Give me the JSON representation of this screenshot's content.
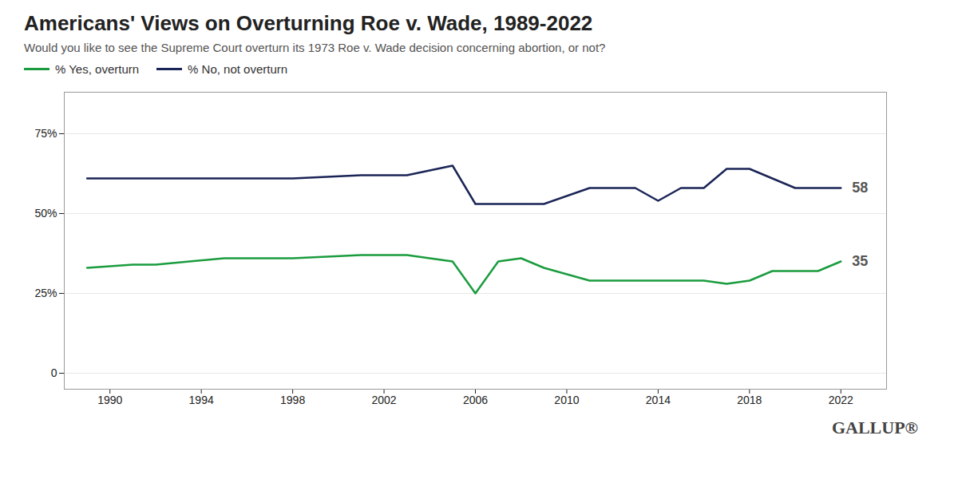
{
  "chart_data": {
    "type": "line",
    "title": "Americans' Views on Overturning Roe v. Wade, 1989-2022",
    "subtitle": "Would you like to see the Supreme Court overturn its 1973 Roe v. Wade decision concerning abortion, or not?",
    "x": [
      1989,
      1991,
      1992,
      1995,
      1998,
      2001,
      2003,
      2005,
      2006,
      2007,
      2008,
      2009,
      2011,
      2012,
      2013,
      2014,
      2015,
      2016,
      2017,
      2018,
      2019,
      2020,
      2021,
      2022
    ],
    "series": [
      {
        "name": "% Yes, overturn",
        "color": "#1a9c3e",
        "values": [
          33,
          34,
          34,
          36,
          36,
          37,
          37,
          35,
          25,
          35,
          36,
          33,
          29,
          29,
          29,
          29,
          29,
          29,
          28,
          29,
          32,
          32,
          32,
          35
        ]
      },
      {
        "name": "% No, not overturn",
        "color": "#1a2456",
        "values": [
          61,
          61,
          61,
          61,
          61,
          62,
          62,
          65,
          53,
          53,
          53,
          53,
          58,
          58,
          58,
          54,
          58,
          58,
          64,
          64,
          61,
          58,
          58,
          58
        ]
      }
    ],
    "xlim": [
      1988,
      2024
    ],
    "xticks": [
      1990,
      1994,
      1998,
      2002,
      2006,
      2010,
      2014,
      2018,
      2022
    ],
    "ylim": [
      -5,
      88
    ],
    "yticks": [
      0,
      {
        "value": 25,
        "label": "25%"
      },
      {
        "value": 50,
        "label": "50%"
      },
      {
        "value": 75,
        "label": "75%"
      }
    ],
    "grid": true,
    "annotations": [
      {
        "text": "58",
        "x": 2022,
        "y": 58
      },
      {
        "text": "35",
        "x": 2022,
        "y": 35
      },
      {
        "text": "GALLUP®"
      }
    ]
  }
}
